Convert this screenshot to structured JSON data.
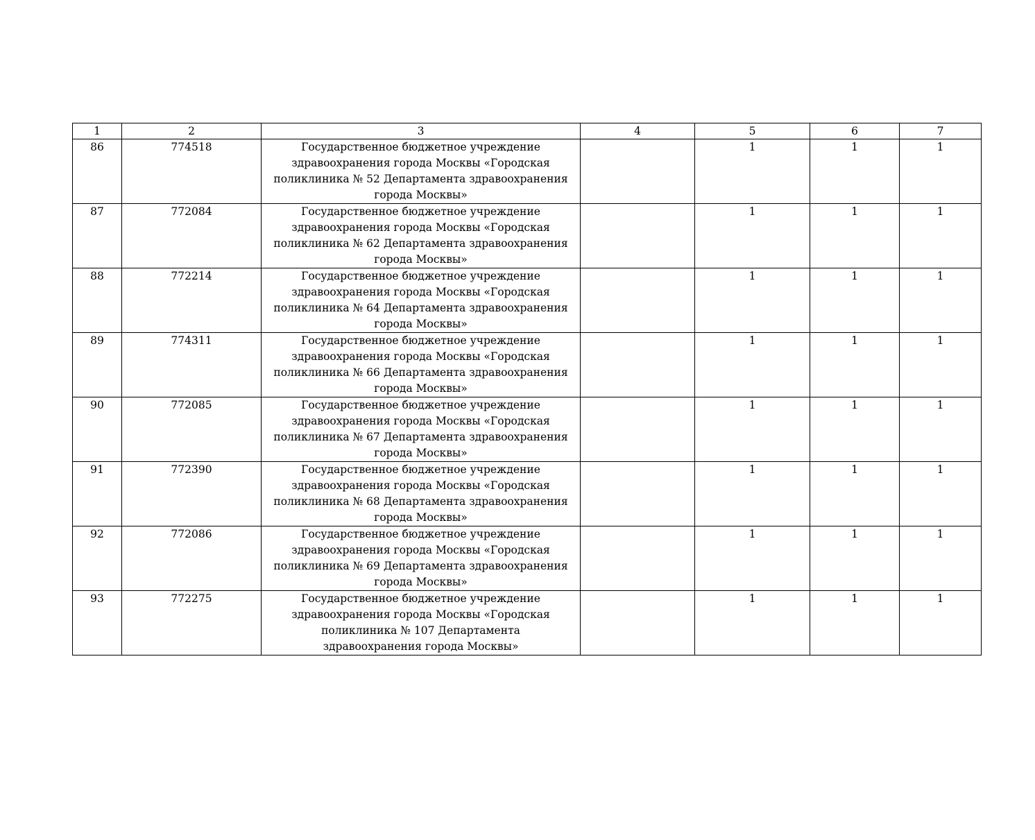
{
  "table": {
    "headers": [
      "1",
      "2",
      "3",
      "4",
      "5",
      "6",
      "7"
    ],
    "rows": [
      {
        "n": "86",
        "code": "774518",
        "name": [
          "Государственное бюджетное учреждение",
          "здравоохранения города Москвы «Городская",
          "поликлиника № 52 Департамента здравоохранения",
          "города Москвы»"
        ],
        "c4": "",
        "c5": "1",
        "c6": "1",
        "c7": "1"
      },
      {
        "n": "87",
        "code": "772084",
        "name": [
          "Государственное бюджетное учреждение",
          "здравоохранения города Москвы «Городская",
          "поликлиника № 62 Департамента здравоохранения",
          "города Москвы»"
        ],
        "c4": "",
        "c5": "1",
        "c6": "1",
        "c7": "1"
      },
      {
        "n": "88",
        "code": "772214",
        "name": [
          "Государственное бюджетное учреждение",
          "здравоохранения города Москвы «Городская",
          "поликлиника № 64 Департамента здравоохранения",
          "города Москвы»"
        ],
        "c4": "",
        "c5": "1",
        "c6": "1",
        "c7": "1"
      },
      {
        "n": "89",
        "code": "774311",
        "name": [
          "Государственное бюджетное учреждение",
          "здравоохранения города Москвы «Городская",
          "поликлиника № 66 Департамента здравоохранения",
          "города Москвы»"
        ],
        "c4": "",
        "c5": "1",
        "c6": "1",
        "c7": "1"
      },
      {
        "n": "90",
        "code": "772085",
        "name": [
          "Государственное бюджетное учреждение",
          "здравоохранения города Москвы «Городская",
          "поликлиника № 67 Департамента здравоохранения",
          "города Москвы»"
        ],
        "c4": "",
        "c5": "1",
        "c6": "1",
        "c7": "1"
      },
      {
        "n": "91",
        "code": "772390",
        "name": [
          "Государственное бюджетное учреждение",
          "здравоохранения города Москвы «Городская",
          "поликлиника № 68 Департамента здравоохранения",
          "города Москвы»"
        ],
        "c4": "",
        "c5": "1",
        "c6": "1",
        "c7": "1"
      },
      {
        "n": "92",
        "code": "772086",
        "name": [
          "Государственное бюджетное учреждение",
          "здравоохранения города Москвы «Городская",
          "поликлиника № 69 Департамента здравоохранения",
          "города Москвы»"
        ],
        "c4": "",
        "c5": "1",
        "c6": "1",
        "c7": "1"
      },
      {
        "n": "93",
        "code": "772275",
        "name": [
          "Государственное бюджетное учреждение",
          "здравоохранения города Москвы «Городская",
          "поликлиника № 107 Департамента",
          "здравоохранения города Москвы»"
        ],
        "c4": "",
        "c5": "1",
        "c6": "1",
        "c7": "1"
      }
    ]
  }
}
